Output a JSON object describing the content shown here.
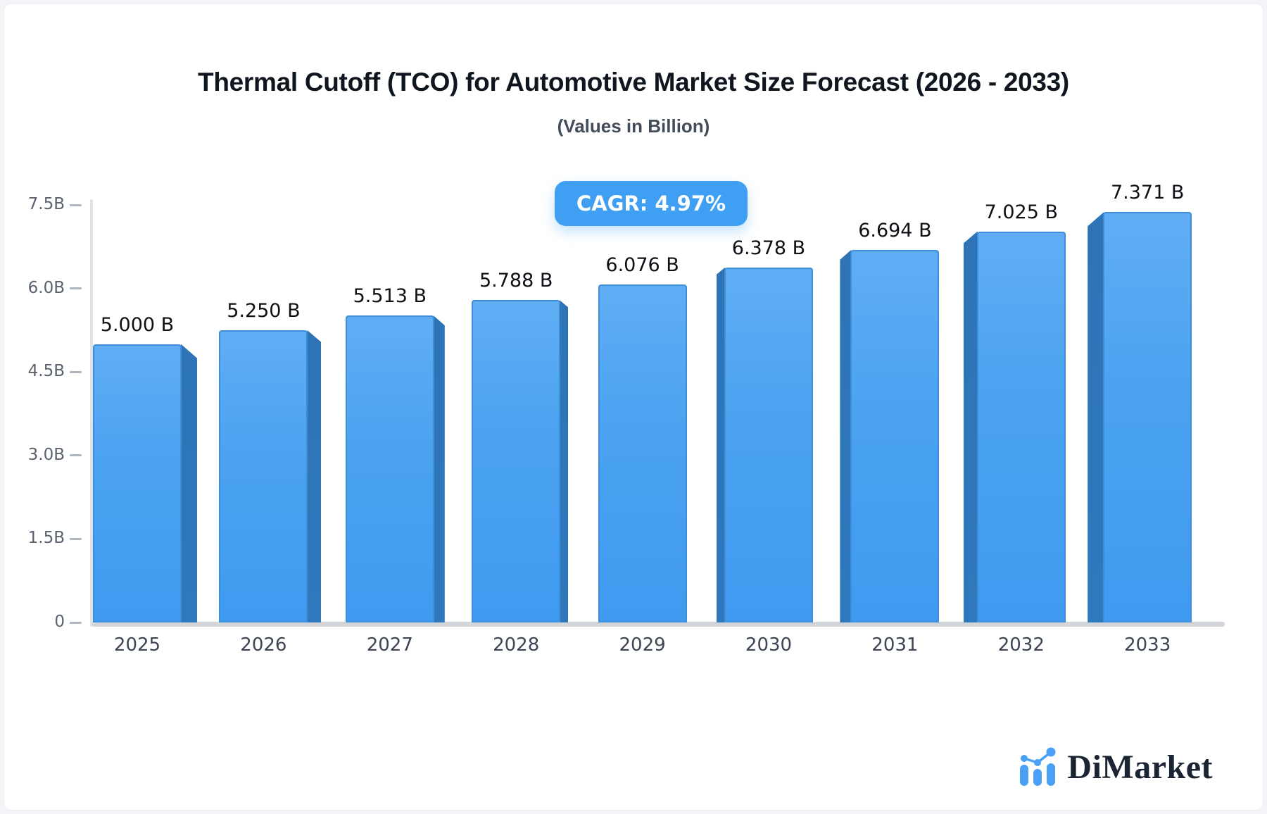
{
  "chart_data": {
    "type": "bar",
    "title": "Thermal Cutoff (TCO) for Automotive Market Size Forecast (2026 - 2033)",
    "subtitle": "(Values in Billion)",
    "cagr_label": "CAGR: 4.97%",
    "categories": [
      "2025",
      "2026",
      "2027",
      "2028",
      "2029",
      "2030",
      "2031",
      "2032",
      "2033"
    ],
    "values": [
      5.0,
      5.25,
      5.513,
      5.788,
      6.076,
      6.378,
      6.694,
      7.025,
      7.371
    ],
    "value_labels": [
      "5.000 B",
      "5.250 B",
      "5.513 B",
      "5.788 B",
      "6.076 B",
      "6.378 B",
      "6.694 B",
      "7.025 B",
      "7.371 B"
    ],
    "y_ticks": [
      {
        "label": "7.5B",
        "value": 7.5
      },
      {
        "label": "6.0B",
        "value": 6.0
      },
      {
        "label": "4.5B",
        "value": 4.5
      },
      {
        "label": "3.0B",
        "value": 3.0
      },
      {
        "label": "1.5B",
        "value": 1.5
      },
      {
        "label": "0",
        "value": 0
      }
    ],
    "ylim": [
      0,
      7.5
    ],
    "legend": null,
    "grid": false,
    "colors": {
      "bar_face": "#4AA2F0",
      "bar_face_highlight": "#60ADF4",
      "bar_side": "#2D73B6",
      "bar_border": "#3E8FD9",
      "badge_bg": "#3F9FF2",
      "axis_gray": "#D2D6DB"
    }
  },
  "branding": {
    "logo_text": "DiMarket"
  }
}
